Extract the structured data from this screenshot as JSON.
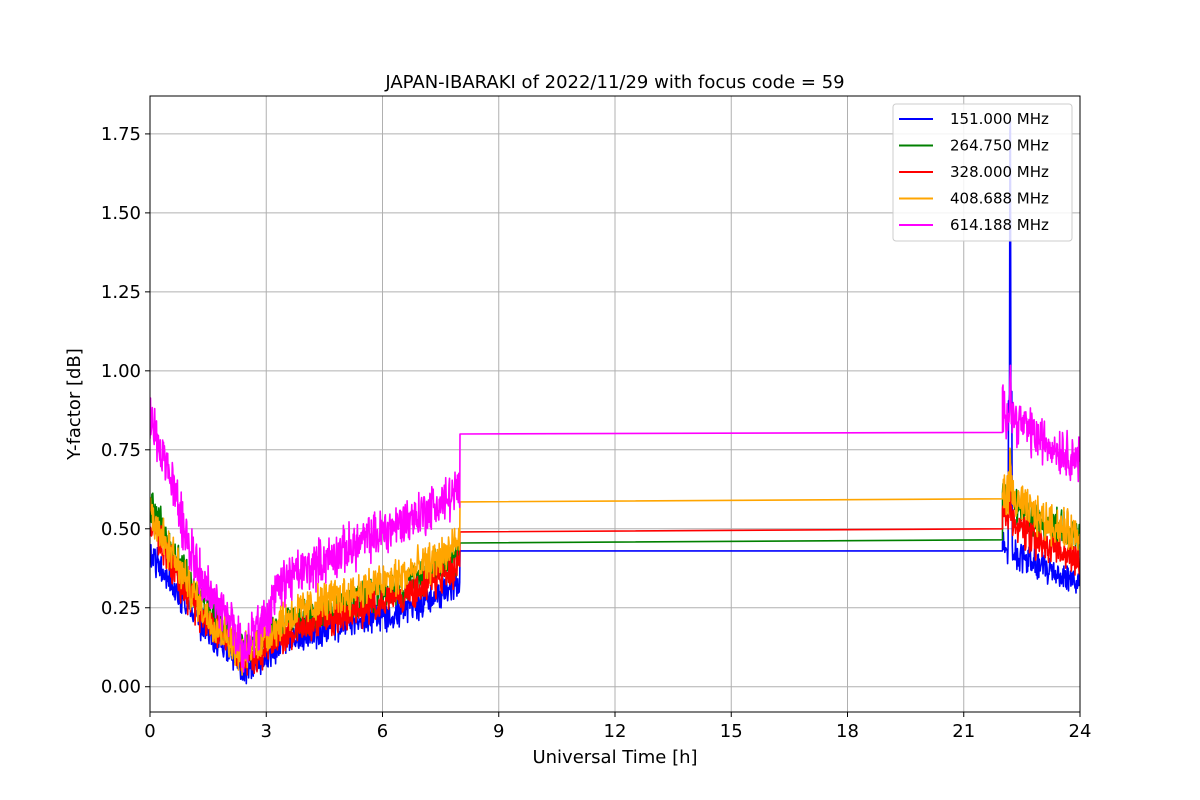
{
  "chart_data": {
    "type": "line",
    "title": "JAPAN-IBARAKI of 2022/11/29 with focus code = 59",
    "xlabel": "Universal Time [h]",
    "ylabel": "Y-factor [dB]",
    "xlim": [
      0,
      24
    ],
    "ylim": [
      -0.08,
      1.87
    ],
    "xticks": [
      0,
      3,
      6,
      9,
      12,
      15,
      18,
      21,
      24
    ],
    "yticks": [
      0.0,
      0.25,
      0.5,
      0.75,
      1.0,
      1.25,
      1.5,
      1.75
    ],
    "ytick_labels": [
      "0.00",
      "0.25",
      "0.50",
      "0.75",
      "1.00",
      "1.25",
      "1.50",
      "1.75"
    ],
    "grid": true,
    "legend_position": "top-right",
    "gap_hours": [
      8.0,
      22.0
    ],
    "series": [
      {
        "name": "151.000 MHz",
        "color": "#0000ff",
        "base_points": [
          [
            0,
            0.42
          ],
          [
            0.5,
            0.34
          ],
          [
            1.0,
            0.25
          ],
          [
            1.5,
            0.17
          ],
          [
            2.0,
            0.12
          ],
          [
            2.4,
            0.05
          ],
          [
            2.8,
            0.08
          ],
          [
            3.5,
            0.14
          ],
          [
            4.5,
            0.18
          ],
          [
            5.5,
            0.22
          ],
          [
            6.5,
            0.24
          ],
          [
            7.5,
            0.3
          ],
          [
            8.0,
            0.32
          ]
        ],
        "noise": 0.04,
        "gap_values": [
          0.43,
          0.43
        ],
        "tail_points": [
          [
            22.0,
            0.44
          ],
          [
            23.0,
            0.38
          ],
          [
            24.0,
            0.33
          ]
        ],
        "spike": [
          22.2,
          1.78
        ]
      },
      {
        "name": "264.750 MHz",
        "color": "#008000",
        "base_points": [
          [
            0,
            0.58
          ],
          [
            0.5,
            0.45
          ],
          [
            1.0,
            0.33
          ],
          [
            1.5,
            0.24
          ],
          [
            2.0,
            0.18
          ],
          [
            2.4,
            0.12
          ],
          [
            2.8,
            0.14
          ],
          [
            3.5,
            0.2
          ],
          [
            4.5,
            0.24
          ],
          [
            5.5,
            0.28
          ],
          [
            6.5,
            0.32
          ],
          [
            7.5,
            0.38
          ],
          [
            8.0,
            0.42
          ]
        ],
        "noise": 0.045,
        "gap_values": [
          0.455,
          0.465
        ],
        "tail_points": [
          [
            22.0,
            0.6
          ],
          [
            23.0,
            0.52
          ],
          [
            24.0,
            0.48
          ]
        ],
        "spike": [
          22.2,
          0.75
        ]
      },
      {
        "name": "328.000 MHz",
        "color": "#ff0000",
        "base_points": [
          [
            0,
            0.52
          ],
          [
            0.5,
            0.4
          ],
          [
            1.0,
            0.28
          ],
          [
            1.5,
            0.2
          ],
          [
            2.0,
            0.15
          ],
          [
            2.4,
            0.08
          ],
          [
            2.8,
            0.1
          ],
          [
            3.5,
            0.17
          ],
          [
            4.5,
            0.21
          ],
          [
            5.5,
            0.25
          ],
          [
            6.5,
            0.29
          ],
          [
            7.5,
            0.34
          ],
          [
            8.0,
            0.38
          ]
        ],
        "noise": 0.045,
        "gap_values": [
          0.49,
          0.5
        ],
        "tail_points": [
          [
            22.0,
            0.54
          ],
          [
            23.0,
            0.45
          ],
          [
            24.0,
            0.4
          ]
        ],
        "spike": [
          22.2,
          0.68
        ]
      },
      {
        "name": "408.688 MHz",
        "color": "#ffa500",
        "base_points": [
          [
            0,
            0.56
          ],
          [
            0.5,
            0.43
          ],
          [
            1.0,
            0.32
          ],
          [
            1.5,
            0.22
          ],
          [
            2.0,
            0.16
          ],
          [
            2.4,
            0.1
          ],
          [
            2.8,
            0.14
          ],
          [
            3.5,
            0.22
          ],
          [
            4.5,
            0.27
          ],
          [
            5.5,
            0.31
          ],
          [
            6.5,
            0.35
          ],
          [
            7.5,
            0.41
          ],
          [
            8.0,
            0.46
          ]
        ],
        "noise": 0.05,
        "gap_values": [
          0.585,
          0.595
        ],
        "tail_points": [
          [
            22.0,
            0.62
          ],
          [
            23.0,
            0.53
          ],
          [
            24.0,
            0.48
          ]
        ],
        "spike": [
          22.2,
          0.7
        ]
      },
      {
        "name": "614.188 MHz",
        "color": "#ff00ff",
        "base_points": [
          [
            0,
            0.85
          ],
          [
            0.5,
            0.67
          ],
          [
            1.0,
            0.45
          ],
          [
            1.5,
            0.3
          ],
          [
            2.0,
            0.22
          ],
          [
            2.4,
            0.12
          ],
          [
            2.8,
            0.18
          ],
          [
            3.5,
            0.34
          ],
          [
            4.5,
            0.4
          ],
          [
            5.5,
            0.46
          ],
          [
            6.5,
            0.52
          ],
          [
            7.5,
            0.58
          ],
          [
            8.0,
            0.62
          ]
        ],
        "noise": 0.06,
        "gap_values": [
          0.8,
          0.805
        ],
        "tail_points": [
          [
            22.0,
            0.88
          ],
          [
            23.0,
            0.78
          ],
          [
            24.0,
            0.72
          ]
        ],
        "spike": [
          22.2,
          0.98
        ]
      }
    ]
  }
}
